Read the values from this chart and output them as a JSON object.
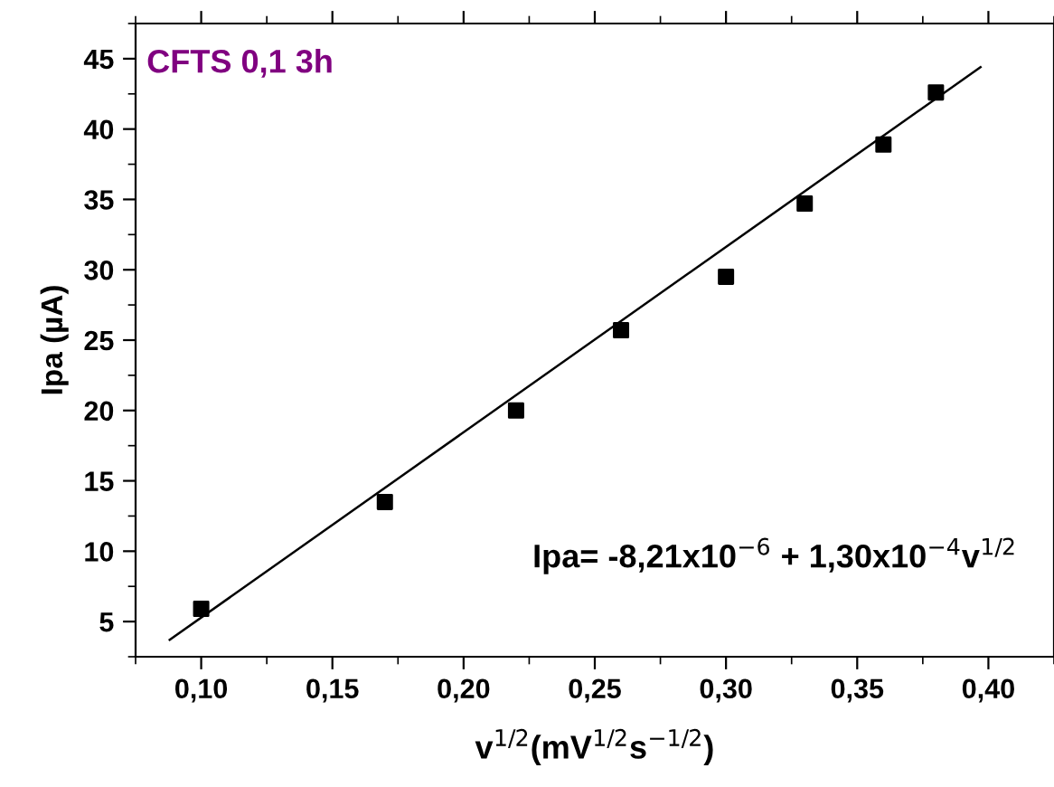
{
  "chart_data": {
    "type": "scatter",
    "xlabel": "v$^{1/2}$(mV$^{1/2}$s$^{−1/2}$)",
    "ylabel": "Ipa (µA)",
    "annotations": [
      "CFTS 0,1 3h",
      "Ipa= -8,21x10$^{−6}$ + 1,30x10$^{−4}$v$^{1/2}$"
    ],
    "x": [
      0.1,
      0.17,
      0.22,
      0.26,
      0.3,
      0.33,
      0.36,
      0.38
    ],
    "series": [
      {
        "color": "#000000",
        "marker": "square",
        "values": [
          5.9,
          13.5,
          20.0,
          25.7,
          29.5,
          34.7,
          38.9,
          42.6
        ]
      },
      {
        "type": "line",
        "color": "#000000",
        "marker": "none",
        "line_style": "solid",
        "x": [
          0.088,
          0.397
        ],
        "values": [
          3.7,
          44.4
        ]
      }
    ],
    "xlim": [
      0.075,
      0.425
    ],
    "ylim": [
      2.5,
      47.5
    ],
    "xticks": [
      {
        "value": 0.1,
        "label": "0,10"
      },
      {
        "value": 0.15,
        "label": "0,15"
      },
      {
        "value": 0.2,
        "label": "0,20"
      },
      {
        "value": 0.25,
        "label": "0,25"
      },
      {
        "value": 0.3,
        "label": "0,30"
      },
      {
        "value": 0.35,
        "label": "0,35"
      },
      {
        "value": 0.4,
        "label": "0,40"
      }
    ],
    "yticks": [
      5,
      10,
      15,
      20,
      25,
      30,
      35,
      40,
      45
    ],
    "grid": false,
    "legend": false
  }
}
